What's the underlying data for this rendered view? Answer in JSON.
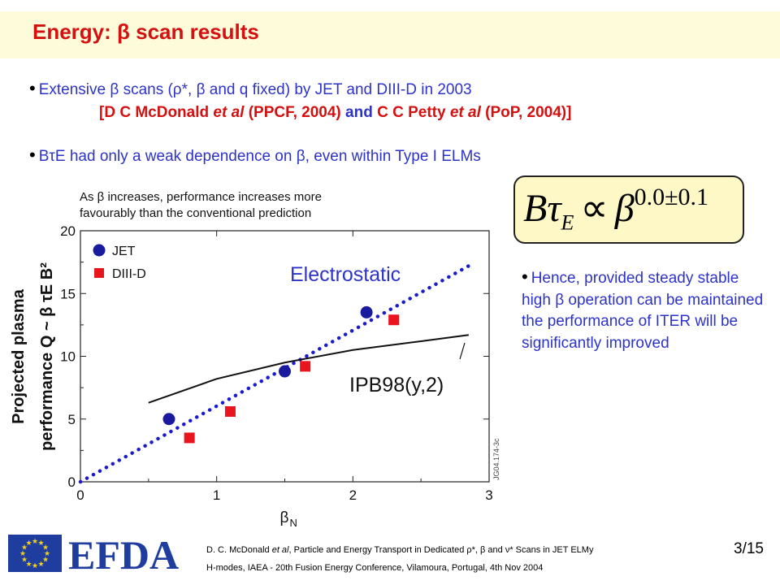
{
  "slide": {
    "title": "Energy: β scan results",
    "bullets": [
      "Extensive β scans (ρ*, β and q fixed) by JET and DIII-D in 2003",
      "BτE had only a weak dependence on β, even within Type I ELMs"
    ],
    "reference": {
      "open": "[D C McDonald ",
      "etal1": "et al",
      "mid1": " (PPCF, 2004) ",
      "and": "and",
      "mid2": " C C Petty ",
      "etal2": "et al",
      "close": " (PoP, 2004)]"
    },
    "formula": {
      "lhs": "Bτ",
      "sub": "E",
      "prop": "∝",
      "base": "β",
      "exp": "0.0±0.1"
    },
    "conclusion": "Hence, provided steady stable high β operation can be maintained the performance of ITER will be significantly improved",
    "page": "3/15"
  },
  "footer": {
    "logo_text": "EFDA",
    "line1_a": "D. C. McDonald ",
    "line1_etal": "et al",
    "line1_b": ", Particle and Energy Transport in Dedicated ρ*, β and ν* Scans in JET ELMy",
    "line2": "H-modes, IAEA - 20th Fusion Energy Conference, Vilamoura, Portugal,  4th Nov 2004",
    "colors": {
      "eu_blue": "#1f3d9e",
      "eu_star": "#f2d21e",
      "efda_blue": "#1f3d9e"
    }
  },
  "chart_data": {
    "type": "scatter",
    "title": "As β increases, performance increases more favourably than the conventional prediction",
    "ylabel_line1": "Projected plasma",
    "ylabel_line2": "performance Q ~ β τE B²",
    "xlabel": "βN",
    "xlim": [
      0,
      3
    ],
    "ylim": [
      0,
      20
    ],
    "xticks": [
      "0",
      "1",
      "2",
      "3"
    ],
    "yticks": [
      "0",
      "5",
      "10",
      "15",
      "20"
    ],
    "tag": "JG04.174-3c",
    "series": [
      {
        "name": "JET",
        "color": "#1a1a9e",
        "marker": "circle",
        "x": [
          0.65,
          1.5,
          2.1
        ],
        "y": [
          5.0,
          8.8,
          13.5
        ]
      },
      {
        "name": "DIII-D",
        "color": "#e8141e",
        "marker": "square",
        "x": [
          0.8,
          1.1,
          1.65,
          2.3
        ],
        "y": [
          3.5,
          5.6,
          9.2,
          12.9
        ]
      }
    ],
    "lines": [
      {
        "name": "Electrostatic",
        "color": "#1a1ad0",
        "style": "dotted",
        "x": [
          0.0,
          2.85
        ],
        "y": [
          0.0,
          17.2
        ]
      },
      {
        "name": "IPB98(y,2)",
        "color": "#111111",
        "style": "solid",
        "x": [
          0.5,
          1.0,
          1.5,
          2.0,
          2.5,
          2.85
        ],
        "y": [
          6.3,
          8.2,
          9.5,
          10.5,
          11.2,
          11.7
        ]
      }
    ]
  }
}
